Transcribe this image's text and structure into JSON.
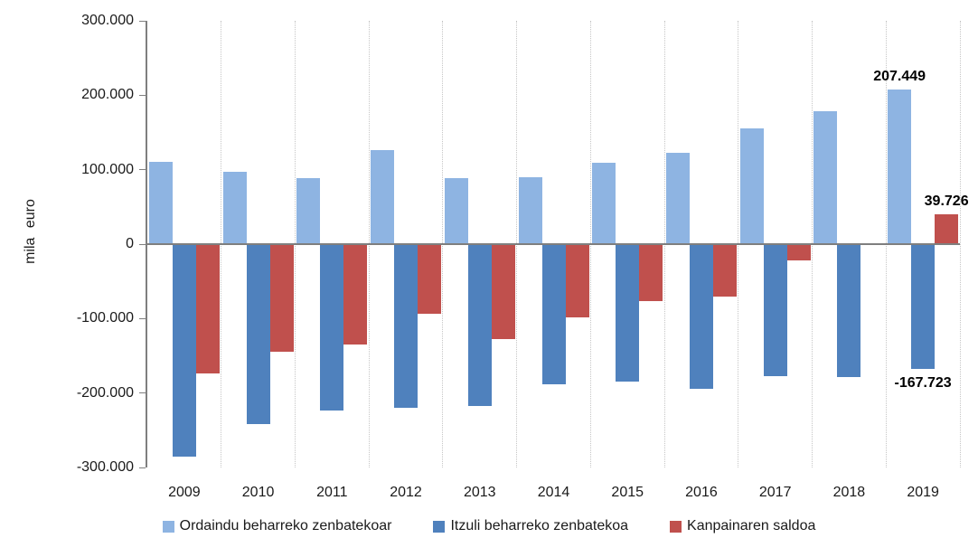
{
  "chart_data": {
    "type": "bar",
    "title": "",
    "xlabel": "",
    "ylabel": "mila euro",
    "categories": [
      "2009",
      "2010",
      "2011",
      "2012",
      "2013",
      "2014",
      "2015",
      "2016",
      "2017",
      "2018",
      "2019"
    ],
    "series": [
      {
        "name": "Ordaindu beharreko zenbatekoar",
        "color": "#8EB4E2",
        "values": [
          111000,
          97000,
          89000,
          126000,
          89000,
          90000,
          109000,
          123000,
          155000,
          178000,
          207449
        ]
      },
      {
        "name": "Itzuli beharreko zenbatekoa",
        "color": "#4F81BD",
        "values": [
          -285000,
          -242000,
          -224000,
          -220000,
          -217000,
          -188000,
          -185000,
          -194000,
          -177000,
          -178000,
          -167723
        ]
      },
      {
        "name": "Kanpainaren saldoa",
        "color": "#C0504D",
        "values": [
          -174000,
          -145000,
          -135000,
          -94000,
          -128000,
          -98000,
          -76000,
          -71000,
          -22000,
          0,
          39726
        ]
      }
    ],
    "ylim": [
      -300000,
      300000
    ],
    "ytick_step": 100000,
    "ytick_labels": [
      "300.000",
      "200.000",
      "100.000",
      "0",
      "-100.000",
      "-200.000",
      "-300.000"
    ],
    "grid": "vertical category separators, dotted",
    "legend_position": "bottom",
    "data_labels": [
      {
        "series": 0,
        "category": "2019",
        "text": "207.449"
      },
      {
        "series": 2,
        "category": "2019",
        "text": "39.726"
      },
      {
        "series": 1,
        "category": "2019",
        "text": "-167.723"
      }
    ],
    "axis_color": "#7F7F7F",
    "gridline_color": "#C6C6C6",
    "text_color": "#1A1A1A"
  }
}
